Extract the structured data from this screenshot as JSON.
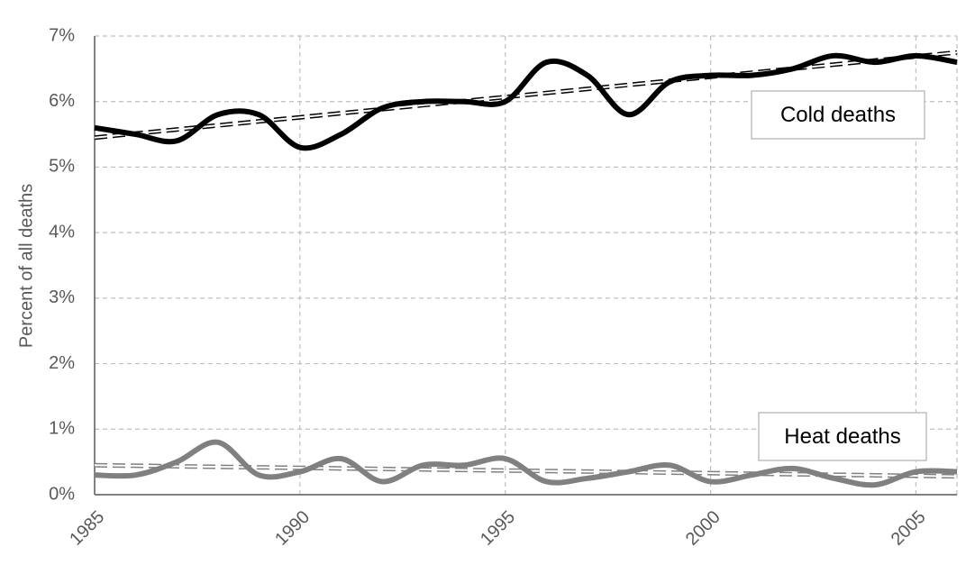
{
  "chart_data": {
    "type": "line",
    "y_label": "Percent of all deaths",
    "x": [
      1985,
      1986,
      1987,
      1988,
      1989,
      1990,
      1991,
      1992,
      1993,
      1994,
      1995,
      1996,
      1997,
      1998,
      1999,
      2000,
      2001,
      2002,
      2003,
      2004,
      2005,
      2006
    ],
    "series": [
      {
        "name": "Cold deaths",
        "color": "#000000",
        "values": [
          5.6,
          5.5,
          5.4,
          5.8,
          5.8,
          5.3,
          5.5,
          5.9,
          6.0,
          6.0,
          6.0,
          6.6,
          6.4,
          5.8,
          6.3,
          6.4,
          6.4,
          6.5,
          6.7,
          6.6,
          6.7,
          6.6
        ],
        "trend": {
          "x": [
            1985,
            2006
          ],
          "values": [
            5.45,
            6.75
          ]
        }
      },
      {
        "name": "Heat deaths",
        "color": "#808080",
        "values": [
          0.3,
          0.3,
          0.5,
          0.8,
          0.3,
          0.35,
          0.55,
          0.2,
          0.45,
          0.45,
          0.55,
          0.2,
          0.25,
          0.35,
          0.45,
          0.2,
          0.3,
          0.4,
          0.25,
          0.15,
          0.35,
          0.35
        ],
        "trend": {
          "x": [
            1985,
            2006
          ],
          "values": [
            0.45,
            0.28
          ]
        }
      }
    ],
    "xlim": [
      1985,
      2006
    ],
    "xticks": [
      1985,
      1990,
      1995,
      2000,
      2005
    ],
    "ylim": [
      0,
      7
    ],
    "yticks": [
      {
        "value": 0,
        "label": "0%"
      },
      {
        "value": 1,
        "label": "1%"
      },
      {
        "value": 2,
        "label": "2%"
      },
      {
        "value": 3,
        "label": "3%"
      },
      {
        "value": 4,
        "label": "4%"
      },
      {
        "value": 5,
        "label": "5%"
      },
      {
        "value": 6,
        "label": "6%"
      },
      {
        "value": 7,
        "label": "7%"
      }
    ],
    "grid": true
  }
}
